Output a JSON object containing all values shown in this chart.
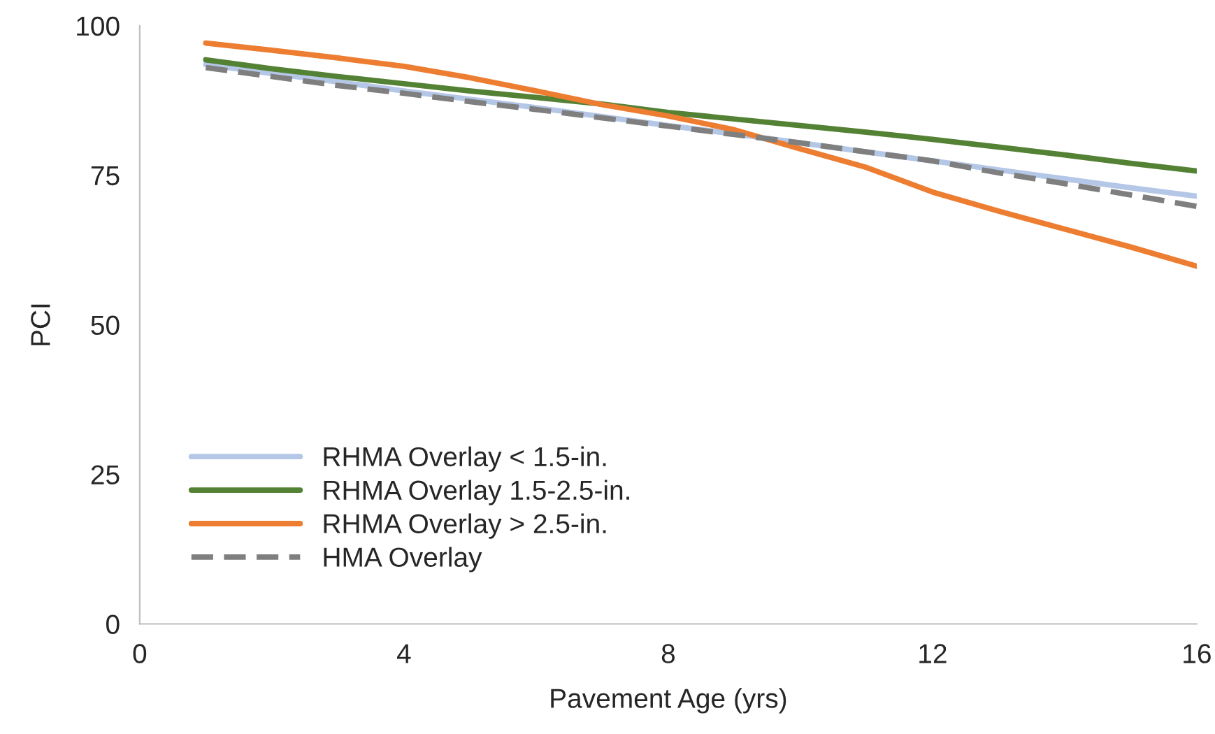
{
  "chart_data": {
    "type": "line",
    "xlabel": "Pavement Age (yrs)",
    "ylabel": "PCI",
    "x": [
      1,
      2,
      3,
      4,
      5,
      6,
      7,
      8,
      9,
      10,
      11,
      12,
      13,
      14,
      15,
      16
    ],
    "series": [
      {
        "name": "RHMA Overlay < 1.5-in.",
        "color": "#b4c7e7",
        "values": [
          93.5,
          92.0,
          90.6,
          89.1,
          87.7,
          86.3,
          84.8,
          83.3,
          81.9,
          80.4,
          78.9,
          77.4,
          75.9,
          74.4,
          72.9,
          71.5
        ]
      },
      {
        "name": "RHMA Overlay 1.5-2.5-in.",
        "color": "#548235",
        "values": [
          94.3,
          92.8,
          91.5,
          90.3,
          89.1,
          88.0,
          86.9,
          85.5,
          84.4,
          83.3,
          82.2,
          81.0,
          79.7,
          78.4,
          77.0,
          75.7
        ]
      },
      {
        "name": "RHMA Overlay > 2.5-in.",
        "color": "#ed7d31",
        "values": [
          97.1,
          95.9,
          94.6,
          93.2,
          91.3,
          89.1,
          86.8,
          84.9,
          82.6,
          79.4,
          76.3,
          72.2,
          69.0,
          66.0,
          63.0,
          59.8
        ]
      },
      {
        "name": "HMA Overlay",
        "color": "#7f7f7f",
        "line_style": "dashed",
        "values": [
          93.0,
          91.5,
          90.0,
          88.7,
          87.3,
          86.0,
          84.6,
          83.2,
          81.8,
          80.4,
          78.9,
          77.4,
          75.4,
          73.6,
          71.7,
          69.8
        ]
      }
    ],
    "xlim": [
      0,
      16
    ],
    "xticks": [
      0,
      4,
      8,
      12,
      16
    ],
    "ylim": [
      0,
      100
    ],
    "yticks": [
      0,
      25,
      50,
      75,
      100
    ],
    "grid": false,
    "legend": "bottom left",
    "line_style": "solid",
    "marker": "none"
  }
}
